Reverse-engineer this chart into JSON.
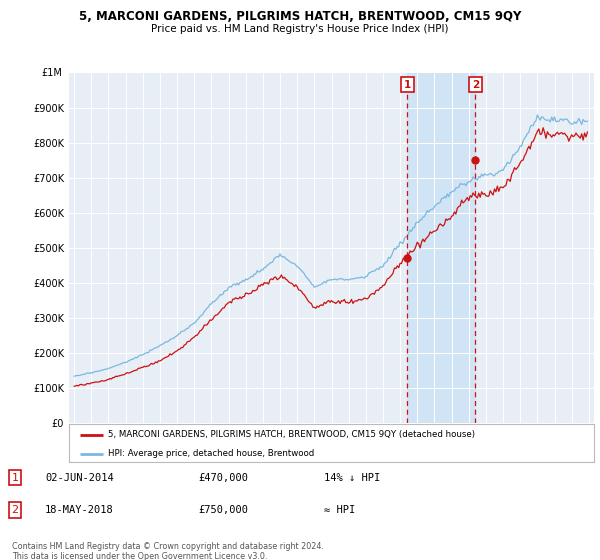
{
  "title": "5, MARCONI GARDENS, PILGRIMS HATCH, BRENTWOOD, CM15 9QY",
  "subtitle": "Price paid vs. HM Land Registry's House Price Index (HPI)",
  "hpi_color": "#7ab8e0",
  "price_color": "#cc1111",
  "background_color": "#ffffff",
  "plot_bg_color": "#e8eef5",
  "shade_color": "#d0e4f5",
  "ylim": [
    0,
    1000000
  ],
  "yticks": [
    0,
    100000,
    200000,
    300000,
    400000,
    500000,
    600000,
    700000,
    800000,
    900000
  ],
  "ytick_labels": [
    "£0",
    "£100K",
    "£200K",
    "£300K",
    "£400K",
    "£500K",
    "£600K",
    "£700K",
    "£800K",
    "£900K"
  ],
  "y1m_label": "£1M",
  "xlim_start": 1994.7,
  "xlim_end": 2025.3,
  "sale1_year": 2014.42,
  "sale1_price": 470000,
  "sale2_year": 2018.38,
  "sale2_price": 750000,
  "legend_line1": "5, MARCONI GARDENS, PILGRIMS HATCH, BRENTWOOD, CM15 9QY (detached house)",
  "legend_line2": "HPI: Average price, detached house, Brentwood",
  "footer": "Contains HM Land Registry data © Crown copyright and database right 2024.\nThis data is licensed under the Open Government Licence v3.0."
}
